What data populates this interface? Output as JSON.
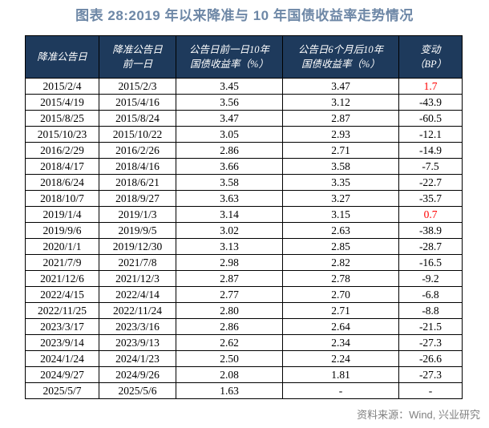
{
  "title": "图表 28:2019 年以来降准与 10 年国债收益率走势情况",
  "source": "资料来源：Wind, 兴业研究",
  "colors": {
    "header_bg": "#1e3a5c",
    "header_text": "#ffffff",
    "title_text": "#6d87a6",
    "positive_change": "#ff0000",
    "border": "#000000",
    "source_text": "#808080"
  },
  "table": {
    "headers": [
      {
        "lines": [
          "降准公告日"
        ]
      },
      {
        "lines": [
          "降准公告日",
          "前一日"
        ]
      },
      {
        "lines": [
          "公告日前一日10年",
          "国债收益率（%）"
        ]
      },
      {
        "lines": [
          "公告日6个月后10年",
          "国债收益率（%）"
        ]
      },
      {
        "lines": [
          "变动",
          "（BP）"
        ]
      }
    ],
    "rows": [
      {
        "cells": [
          "2015/2/4",
          "2015/2/3",
          "3.45",
          "3.47",
          "1.7"
        ],
        "change_positive": true
      },
      {
        "cells": [
          "2015/4/19",
          "2015/4/16",
          "3.56",
          "3.12",
          "-43.9"
        ],
        "change_positive": false
      },
      {
        "cells": [
          "2015/8/25",
          "2015/8/24",
          "3.47",
          "2.87",
          "-60.5"
        ],
        "change_positive": false
      },
      {
        "cells": [
          "2015/10/23",
          "2015/10/22",
          "3.05",
          "2.93",
          "-12.1"
        ],
        "change_positive": false
      },
      {
        "cells": [
          "2016/2/29",
          "2016/2/26",
          "2.86",
          "2.71",
          "-14.9"
        ],
        "change_positive": false
      },
      {
        "cells": [
          "2018/4/17",
          "2018/4/16",
          "3.66",
          "3.58",
          "-7.5"
        ],
        "change_positive": false
      },
      {
        "cells": [
          "2018/6/24",
          "2018/6/21",
          "3.58",
          "3.35",
          "-22.7"
        ],
        "change_positive": false
      },
      {
        "cells": [
          "2018/10/7",
          "2018/9/27",
          "3.63",
          "3.27",
          "-35.7"
        ],
        "change_positive": false
      },
      {
        "cells": [
          "2019/1/4",
          "2019/1/3",
          "3.14",
          "3.15",
          "0.7"
        ],
        "change_positive": true
      },
      {
        "cells": [
          "2019/9/6",
          "2019/9/5",
          "3.02",
          "2.63",
          "-38.9"
        ],
        "change_positive": false
      },
      {
        "cells": [
          "2020/1/1",
          "2019/12/30",
          "3.13",
          "2.85",
          "-28.7"
        ],
        "change_positive": false
      },
      {
        "cells": [
          "2021/7/9",
          "2021/7/8",
          "2.98",
          "2.82",
          "-16.5"
        ],
        "change_positive": false
      },
      {
        "cells": [
          "2021/12/6",
          "2021/12/3",
          "2.87",
          "2.78",
          "-9.2"
        ],
        "change_positive": false
      },
      {
        "cells": [
          "2022/4/15",
          "2022/4/14",
          "2.77",
          "2.70",
          "-6.8"
        ],
        "change_positive": false
      },
      {
        "cells": [
          "2022/11/25",
          "2022/11/24",
          "2.80",
          "2.71",
          "-8.8"
        ],
        "change_positive": false
      },
      {
        "cells": [
          "2023/3/17",
          "2023/3/16",
          "2.86",
          "2.64",
          "-21.5"
        ],
        "change_positive": false
      },
      {
        "cells": [
          "2023/9/14",
          "2023/9/13",
          "2.62",
          "2.34",
          "-27.3"
        ],
        "change_positive": false
      },
      {
        "cells": [
          "2024/1/24",
          "2024/1/23",
          "2.50",
          "2.24",
          "-26.6"
        ],
        "change_positive": false
      },
      {
        "cells": [
          "2024/9/27",
          "2024/9/26",
          "2.08",
          "1.81",
          "-27.3"
        ],
        "change_positive": false
      },
      {
        "cells": [
          "2025/5/7",
          "2025/5/6",
          "1.63",
          "-",
          "-"
        ],
        "change_positive": false
      }
    ]
  }
}
